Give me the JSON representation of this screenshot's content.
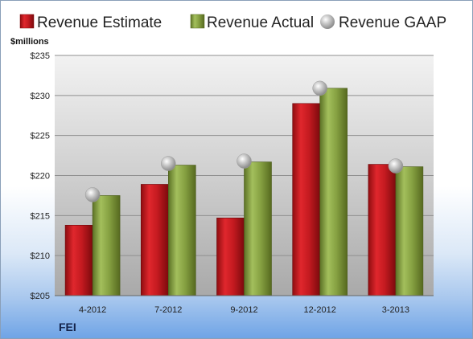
{
  "chart_data": {
    "type": "bar",
    "ylabel": "$millions",
    "company": "FEI",
    "categories": [
      "4-2012",
      "7-2012",
      "9-2012",
      "12-2012",
      "3-2013"
    ],
    "ylim": [
      205,
      235
    ],
    "yticks": [
      "$205",
      "$210",
      "$215",
      "$220",
      "$225",
      "$230",
      "$235"
    ],
    "series": [
      {
        "name": "Revenue Estimate",
        "kind": "bar",
        "color": "#c0141a",
        "values": [
          213.8,
          218.9,
          214.7,
          229.0,
          221.4
        ]
      },
      {
        "name": "Revenue Actual",
        "kind": "bar",
        "color": "#7f9b3c",
        "values": [
          217.5,
          221.3,
          221.7,
          230.9,
          221.1
        ]
      },
      {
        "name": "Revenue GAAP",
        "kind": "marker",
        "color": "#b8b8b8",
        "values": [
          217.6,
          221.5,
          221.8,
          230.9,
          221.2
        ]
      }
    ],
    "legend_position": "top",
    "grid": true
  }
}
